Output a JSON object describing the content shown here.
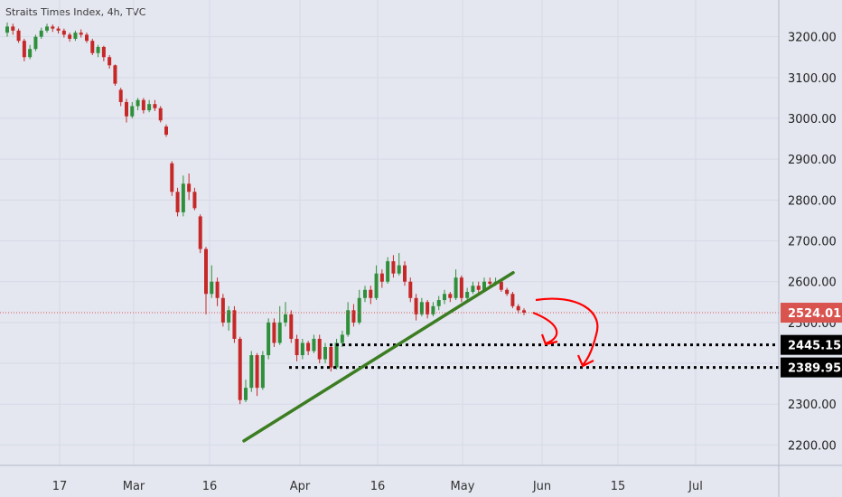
{
  "title": "Straits Times Index, 4h, TVC",
  "chart_data": {
    "type": "candlestick",
    "ylim": [
      2160,
      3280
    ],
    "y_ticks": [
      2200,
      2300,
      2400,
      2500,
      2600,
      2700,
      2800,
      2900,
      3000,
      3100,
      3200
    ],
    "x_ticks": [
      "17",
      "Mar",
      "16",
      "Apr",
      "16",
      "May",
      "Jun",
      "15",
      "Jul"
    ],
    "price_labels": [
      {
        "text": "2524.01",
        "value": 2524.01,
        "style": "current"
      },
      {
        "text": "2445.15",
        "value": 2445.15,
        "style": "level"
      },
      {
        "text": "2389.95",
        "value": 2389.95,
        "style": "level"
      }
    ],
    "candles": [
      [
        3210,
        3225,
        3235,
        3200
      ],
      [
        3225,
        3215,
        3232,
        3205
      ],
      [
        3215,
        3190,
        3220,
        3185
      ],
      [
        3190,
        3150,
        3195,
        3140
      ],
      [
        3150,
        3170,
        3180,
        3145
      ],
      [
        3170,
        3200,
        3205,
        3165
      ],
      [
        3200,
        3215,
        3222,
        3195
      ],
      [
        3215,
        3225,
        3232,
        3210
      ],
      [
        3225,
        3220,
        3230,
        3212
      ],
      [
        3220,
        3215,
        3225,
        3208
      ],
      [
        3215,
        3205,
        3220,
        3198
      ],
      [
        3205,
        3195,
        3210,
        3188
      ],
      [
        3195,
        3210,
        3215,
        3190
      ],
      [
        3210,
        3205,
        3218,
        3198
      ],
      [
        3205,
        3190,
        3210,
        3185
      ],
      [
        3190,
        3160,
        3195,
        3155
      ],
      [
        3160,
        3175,
        3180,
        3150
      ],
      [
        3175,
        3150,
        3178,
        3140
      ],
      [
        3150,
        3130,
        3155,
        3122
      ],
      [
        3130,
        3085,
        3132,
        3080
      ],
      [
        3070,
        3040,
        3075,
        3030
      ],
      [
        3040,
        3005,
        3048,
        2990
      ],
      [
        3005,
        3030,
        3040,
        3000
      ],
      [
        3030,
        3045,
        3050,
        3020
      ],
      [
        3045,
        3020,
        3050,
        3012
      ],
      [
        3020,
        3035,
        3045,
        3015
      ],
      [
        3035,
        3025,
        3045,
        3018
      ],
      [
        3025,
        2995,
        3030,
        2990
      ],
      [
        2980,
        2960,
        2985,
        2955
      ],
      [
        2890,
        2820,
        2895,
        2810
      ],
      [
        2820,
        2770,
        2830,
        2760
      ],
      [
        2770,
        2840,
        2860,
        2760
      ],
      [
        2840,
        2820,
        2865,
        2800
      ],
      [
        2820,
        2780,
        2830,
        2775
      ],
      [
        2760,
        2680,
        2765,
        2670
      ],
      [
        2680,
        2570,
        2685,
        2520
      ],
      [
        2570,
        2600,
        2640,
        2560
      ],
      [
        2600,
        2560,
        2610,
        2540
      ],
      [
        2560,
        2500,
        2570,
        2490
      ],
      [
        2500,
        2530,
        2540,
        2480
      ],
      [
        2530,
        2460,
        2540,
        2450
      ],
      [
        2460,
        2310,
        2465,
        2300
      ],
      [
        2310,
        2340,
        2360,
        2305
      ],
      [
        2340,
        2420,
        2430,
        2330
      ],
      [
        2420,
        2340,
        2425,
        2320
      ],
      [
        2340,
        2420,
        2430,
        2335
      ],
      [
        2420,
        2500,
        2510,
        2410
      ],
      [
        2500,
        2450,
        2510,
        2440
      ],
      [
        2450,
        2500,
        2540,
        2445
      ],
      [
        2500,
        2520,
        2550,
        2490
      ],
      [
        2520,
        2460,
        2530,
        2450
      ],
      [
        2460,
        2420,
        2470,
        2405
      ],
      [
        2420,
        2450,
        2460,
        2410
      ],
      [
        2450,
        2430,
        2455,
        2420
      ],
      [
        2430,
        2460,
        2470,
        2425
      ],
      [
        2460,
        2410,
        2470,
        2400
      ],
      [
        2410,
        2440,
        2450,
        2400
      ],
      [
        2440,
        2390,
        2445,
        2380
      ],
      [
        2390,
        2450,
        2460,
        2385
      ],
      [
        2450,
        2470,
        2480,
        2440
      ],
      [
        2470,
        2530,
        2550,
        2465
      ],
      [
        2530,
        2500,
        2545,
        2490
      ],
      [
        2500,
        2560,
        2580,
        2495
      ],
      [
        2560,
        2580,
        2590,
        2550
      ],
      [
        2580,
        2560,
        2590,
        2545
      ],
      [
        2560,
        2620,
        2640,
        2555
      ],
      [
        2620,
        2600,
        2630,
        2585
      ],
      [
        2600,
        2650,
        2660,
        2595
      ],
      [
        2650,
        2620,
        2665,
        2610
      ],
      [
        2620,
        2640,
        2670,
        2615
      ],
      [
        2640,
        2600,
        2650,
        2590
      ],
      [
        2600,
        2560,
        2610,
        2550
      ],
      [
        2560,
        2520,
        2570,
        2505
      ],
      [
        2520,
        2550,
        2560,
        2515
      ],
      [
        2550,
        2520,
        2555,
        2510
      ],
      [
        2520,
        2540,
        2550,
        2515
      ],
      [
        2540,
        2555,
        2565,
        2530
      ],
      [
        2555,
        2570,
        2580,
        2545
      ],
      [
        2570,
        2560,
        2575,
        2550
      ],
      [
        2560,
        2610,
        2630,
        2555
      ],
      [
        2610,
        2560,
        2615,
        2550
      ],
      [
        2560,
        2575,
        2585,
        2555
      ],
      [
        2575,
        2590,
        2600,
        2570
      ],
      [
        2590,
        2580,
        2600,
        2570
      ],
      [
        2580,
        2600,
        2610,
        2575
      ],
      [
        2600,
        2595,
        2610,
        2585
      ],
      [
        2595,
        2600,
        2610,
        2590
      ],
      [
        2600,
        2580,
        2605,
        2575
      ],
      [
        2580,
        2570,
        2585,
        2565
      ],
      [
        2570,
        2540,
        2575,
        2535
      ],
      [
        2540,
        2530,
        2545,
        2522
      ],
      [
        2530,
        2524,
        2535,
        2518
      ]
    ]
  },
  "annotations": {
    "trendline_color": "#3c7d22",
    "arrow_color": "#ff0000"
  },
  "colors": {
    "bg": "#e4e7f0",
    "up": "#2f8f3a",
    "down": "#c62828",
    "grid": "#d6dae6",
    "current_price": "#d9534f"
  }
}
